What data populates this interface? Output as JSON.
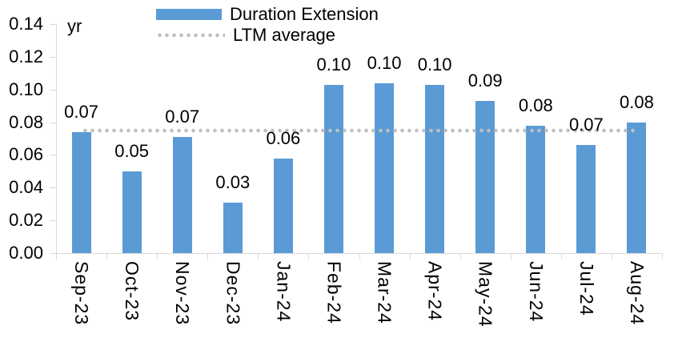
{
  "chart_data": {
    "type": "bar",
    "unit_label": "yr",
    "categories": [
      "Sep-23",
      "Oct-23",
      "Nov-23",
      "Dec-23",
      "Jan-24",
      "Feb-24",
      "Mar-24",
      "Apr-24",
      "May-24",
      "Jun-24",
      "Jul-24",
      "Aug-24"
    ],
    "series": [
      {
        "name": "Duration Extension",
        "type": "bar",
        "values": [
          0.074,
          0.05,
          0.071,
          0.031,
          0.058,
          0.103,
          0.104,
          0.103,
          0.093,
          0.078,
          0.066,
          0.08
        ],
        "data_labels": [
          "0.07",
          "0.05",
          "0.07",
          "0.03",
          "0.06",
          "0.10",
          "0.10",
          "0.10",
          "0.09",
          "0.08",
          "0.07",
          "0.08"
        ],
        "color": "#5B9BD5"
      },
      {
        "name": "LTM average",
        "type": "dotted-line",
        "value": 0.075,
        "color": "#BFBFBF"
      }
    ],
    "ylim": [
      0,
      0.14
    ],
    "ytick_labels": [
      "0.00",
      "0.02",
      "0.04",
      "0.06",
      "0.08",
      "0.10",
      "0.12",
      "0.14"
    ],
    "legend_position": "top-center",
    "grid": false,
    "axis_color": "#D9D9D9",
    "text_color": "#000000"
  },
  "legend": {
    "items": [
      {
        "label": "Duration Extension",
        "swatch": "bar"
      },
      {
        "label": "LTM average",
        "swatch": "dotted-line"
      }
    ]
  }
}
